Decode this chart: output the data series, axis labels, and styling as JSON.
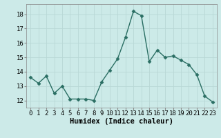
{
  "x": [
    0,
    1,
    2,
    3,
    4,
    5,
    6,
    7,
    8,
    9,
    10,
    11,
    12,
    13,
    14,
    15,
    16,
    17,
    18,
    19,
    20,
    21,
    22,
    23
  ],
  "y": [
    13.6,
    13.2,
    13.7,
    12.5,
    13.0,
    12.1,
    12.1,
    12.1,
    12.0,
    13.3,
    14.1,
    14.9,
    16.4,
    18.2,
    17.9,
    14.7,
    15.5,
    15.0,
    15.1,
    14.8,
    14.5,
    13.8,
    12.3,
    11.9
  ],
  "line_color": "#2a6e63",
  "marker": "D",
  "marker_size": 2.5,
  "linewidth": 1.0,
  "xlabel": "Humidex (Indice chaleur)",
  "ylim": [
    11.5,
    18.7
  ],
  "xlim": [
    -0.5,
    23.5
  ],
  "yticks": [
    12,
    13,
    14,
    15,
    16,
    17,
    18
  ],
  "xticks": [
    0,
    1,
    2,
    3,
    4,
    5,
    6,
    7,
    8,
    9,
    10,
    11,
    12,
    13,
    14,
    15,
    16,
    17,
    18,
    19,
    20,
    21,
    22,
    23
  ],
  "bg_color": "#cceae8",
  "grid_color": "#b8d8d6",
  "tick_label_fontsize": 6.5,
  "xlabel_fontsize": 7.5
}
